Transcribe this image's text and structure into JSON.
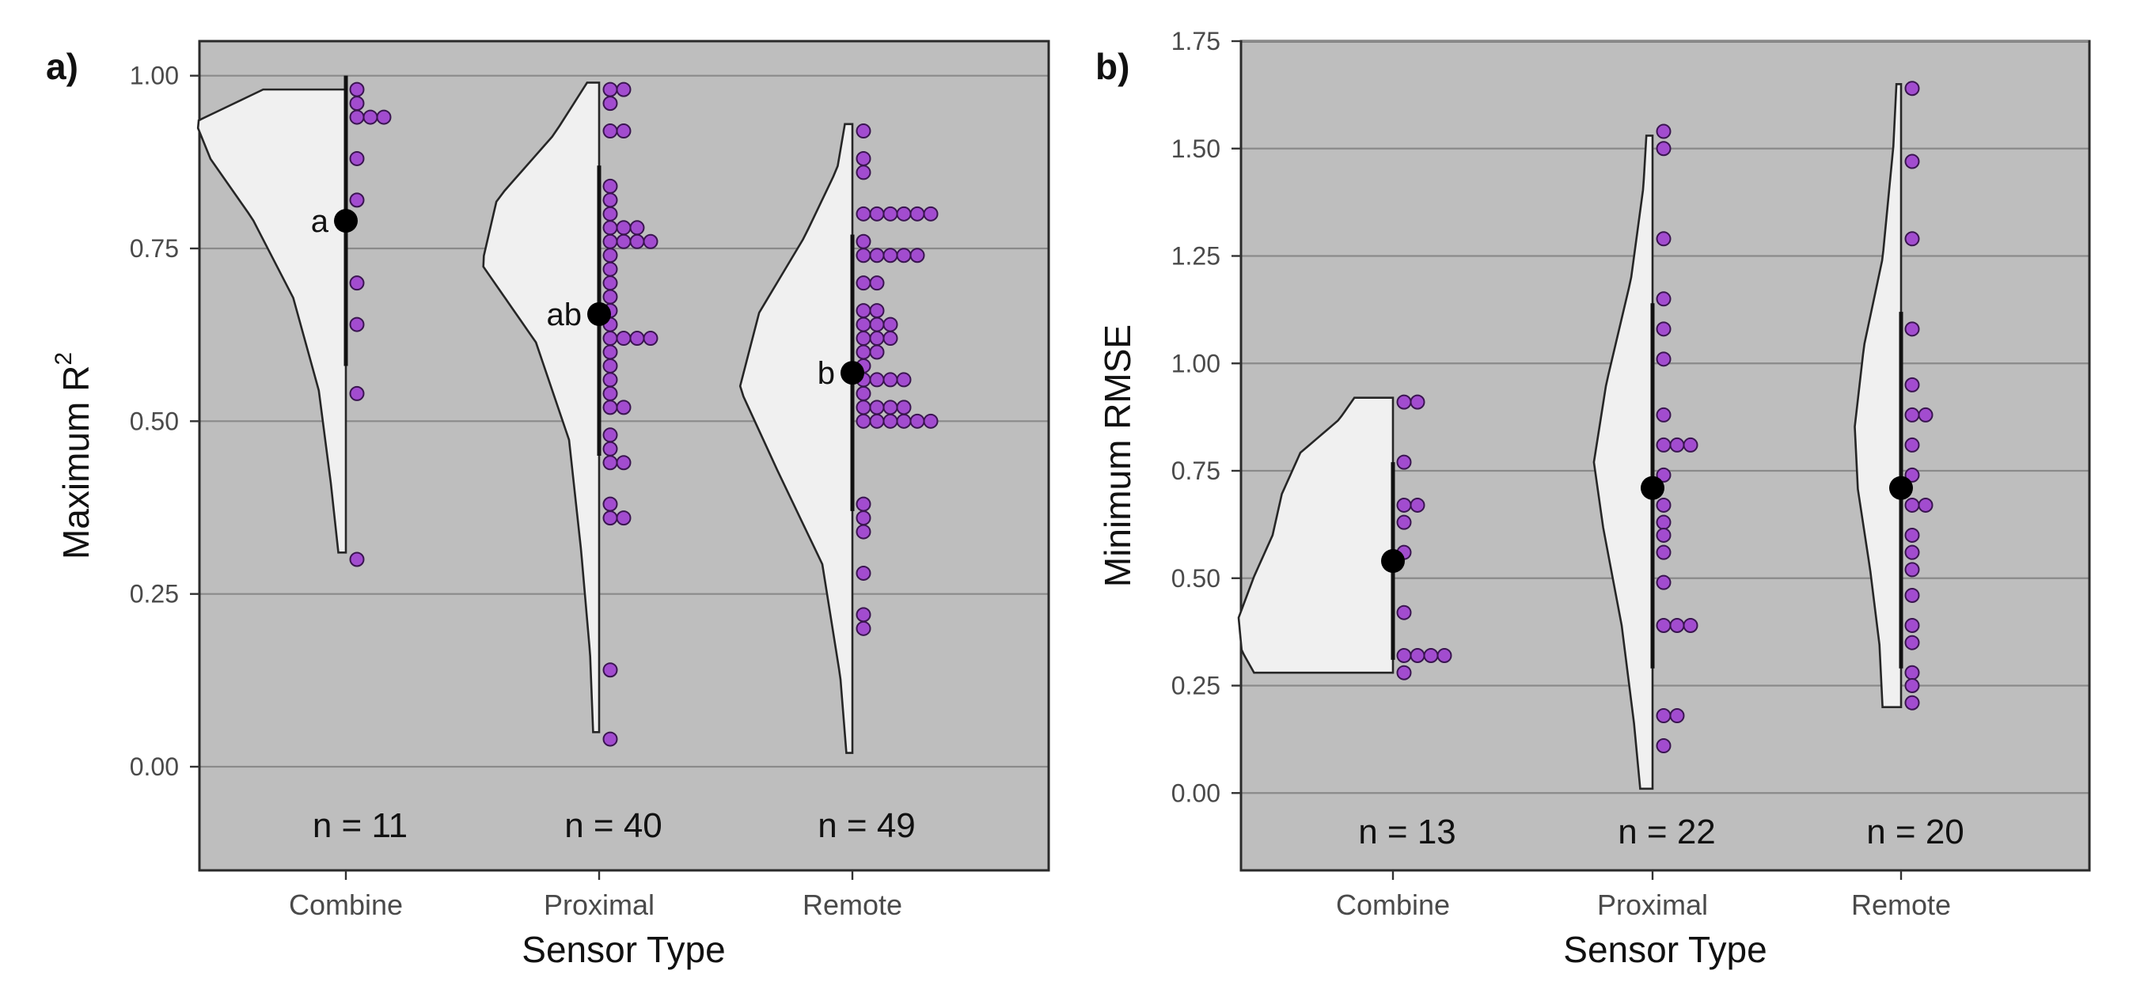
{
  "chart_data": [
    {
      "panel_label": "a)",
      "type": "violin",
      "xlabel": "Sensor Type",
      "ylabel_main": "Maximum  R",
      "ylabel_sup": "2",
      "ylim": [
        -0.15,
        1.05
      ],
      "yticks": [
        0.0,
        0.25,
        0.5,
        0.75,
        1.0
      ],
      "ytick_labels": [
        "0.00",
        "0.25",
        "0.50",
        "0.75",
        "1.00"
      ],
      "grid": true,
      "categories": [
        {
          "name": "Combine",
          "n_label": "n = 11",
          "mean": 0.79,
          "range": [
            0.58,
            1.0
          ],
          "letter": "a",
          "violin_min": 0.31,
          "violin_max": 0.98,
          "points": [
            0.98,
            0.96,
            0.94,
            0.94,
            0.94,
            0.88,
            0.82,
            0.7,
            0.64,
            0.54,
            0.3
          ]
        },
        {
          "name": "Proximal",
          "n_label": "n = 40",
          "mean": 0.655,
          "range": [
            0.45,
            0.87
          ],
          "letter": "ab",
          "violin_min": 0.05,
          "violin_max": 0.99,
          "points": [
            0.98,
            0.98,
            0.96,
            0.92,
            0.92,
            0.84,
            0.82,
            0.8,
            0.78,
            0.78,
            0.78,
            0.76,
            0.76,
            0.76,
            0.76,
            0.74,
            0.72,
            0.7,
            0.68,
            0.66,
            0.64,
            0.62,
            0.62,
            0.62,
            0.62,
            0.6,
            0.58,
            0.56,
            0.54,
            0.52,
            0.52,
            0.48,
            0.46,
            0.44,
            0.44,
            0.38,
            0.36,
            0.36,
            0.14,
            0.04
          ]
        },
        {
          "name": "Remote",
          "n_label": "n = 49",
          "mean": 0.57,
          "range": [
            0.37,
            0.77
          ],
          "letter": "b",
          "violin_min": 0.02,
          "violin_max": 0.93,
          "points": [
            0.92,
            0.88,
            0.86,
            0.8,
            0.8,
            0.8,
            0.8,
            0.8,
            0.8,
            0.76,
            0.74,
            0.74,
            0.74,
            0.74,
            0.74,
            0.7,
            0.7,
            0.66,
            0.66,
            0.64,
            0.64,
            0.64,
            0.62,
            0.62,
            0.62,
            0.6,
            0.6,
            0.58,
            0.56,
            0.56,
            0.56,
            0.56,
            0.54,
            0.52,
            0.52,
            0.52,
            0.52,
            0.5,
            0.5,
            0.5,
            0.5,
            0.5,
            0.5,
            0.38,
            0.36,
            0.34,
            0.28,
            0.22,
            0.2
          ]
        }
      ]
    },
    {
      "panel_label": "b)",
      "type": "violin",
      "xlabel": "Sensor Type",
      "ylabel_main": "Minimum RMSE",
      "ylabel_sup": "",
      "ylim": [
        -0.18,
        1.75
      ],
      "yticks": [
        0.0,
        0.25,
        0.5,
        0.75,
        1.0,
        1.25,
        1.5,
        1.75
      ],
      "ytick_labels": [
        "0.00",
        "0.25",
        "0.50",
        "0.75",
        "1.00",
        "1.25",
        "1.50",
        "1.75"
      ],
      "grid": true,
      "categories": [
        {
          "name": "Combine",
          "n_label": "n = 13",
          "mean": 0.54,
          "range": [
            0.31,
            0.77
          ],
          "letter": "",
          "violin_min": 0.28,
          "violin_max": 0.92,
          "points": [
            0.91,
            0.91,
            0.77,
            0.67,
            0.67,
            0.63,
            0.56,
            0.42,
            0.32,
            0.32,
            0.32,
            0.32,
            0.28
          ]
        },
        {
          "name": "Proximal",
          "n_label": "n = 22",
          "mean": 0.71,
          "range": [
            0.29,
            1.14
          ],
          "letter": "",
          "violin_min": 0.01,
          "violin_max": 1.53,
          "points": [
            1.54,
            1.5,
            1.29,
            1.15,
            1.08,
            1.01,
            0.88,
            0.81,
            0.81,
            0.81,
            0.74,
            0.67,
            0.63,
            0.6,
            0.56,
            0.49,
            0.39,
            0.39,
            0.39,
            0.18,
            0.18,
            0.11
          ]
        },
        {
          "name": "Remote",
          "n_label": "n = 20",
          "mean": 0.71,
          "range": [
            0.29,
            1.12
          ],
          "letter": "",
          "violin_min": 0.2,
          "violin_max": 1.65,
          "points": [
            1.64,
            1.47,
            1.29,
            1.08,
            0.95,
            0.88,
            0.88,
            0.81,
            0.74,
            0.67,
            0.67,
            0.6,
            0.56,
            0.52,
            0.46,
            0.39,
            0.35,
            0.28,
            0.25,
            0.21
          ]
        }
      ]
    }
  ]
}
